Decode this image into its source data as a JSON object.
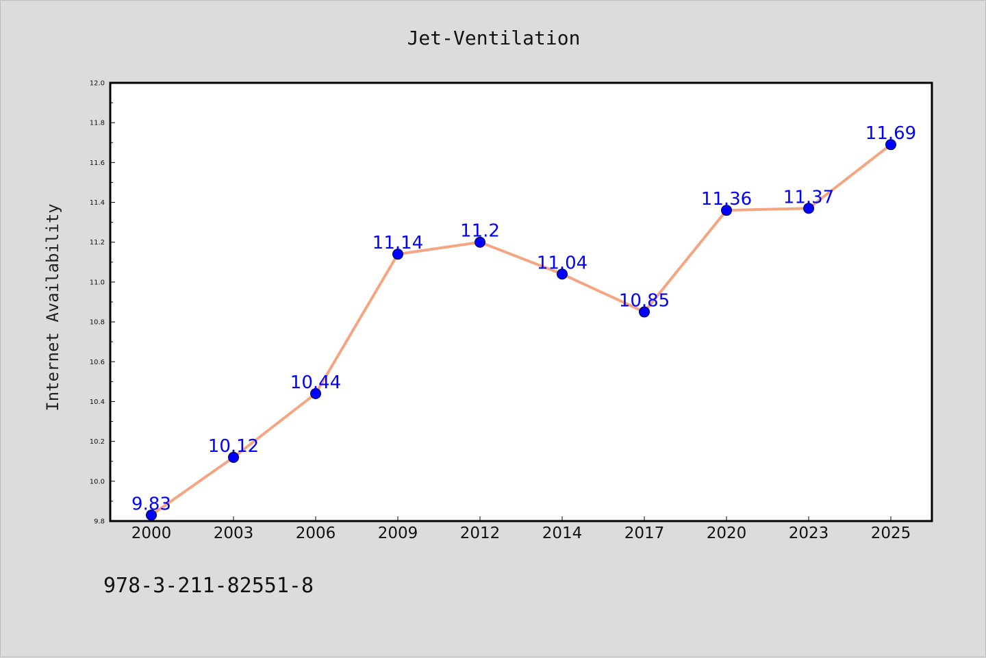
{
  "chart_data": {
    "type": "line",
    "title": "Jet-Ventilation",
    "xlabel": "",
    "ylabel": "Internet Availability",
    "categories": [
      "2000",
      "2003",
      "2006",
      "2009",
      "2012",
      "2014",
      "2017",
      "2020",
      "2023",
      "2025"
    ],
    "series": [
      {
        "values": [
          9.83,
          10.12,
          10.44,
          11.14,
          11.2,
          11.04,
          10.85,
          11.36,
          11.37,
          11.69
        ],
        "data_labels": [
          "9.83",
          "10.12",
          "10.44",
          "11.14",
          "11.2",
          "11.04",
          "10.85",
          "11.36",
          "11.37",
          "11.69"
        ],
        "line_color": "#f4a582",
        "marker_color": "#0000ff"
      }
    ],
    "ylim": [
      9.8,
      12.0
    ],
    "yticks": [
      "9.8",
      "10.0",
      "10.2",
      "10.4",
      "10.6",
      "10.8",
      "11.0",
      "11.2",
      "11.4",
      "11.6",
      "11.8",
      "12.0"
    ],
    "grid": false,
    "legend": "none"
  },
  "footnote": "978-3-211-82551-8"
}
